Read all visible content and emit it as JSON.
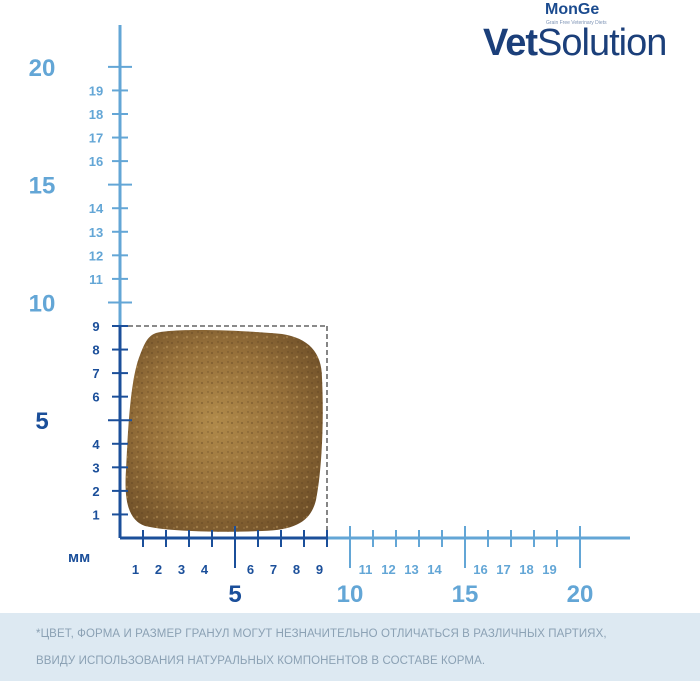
{
  "brand": {
    "top": "MonGe",
    "tagline": "Grain Free Veterinary Diets",
    "name_bold": "Vet",
    "name_regular": "Solution"
  },
  "ruler": {
    "unit_label": "мм",
    "vertical": {
      "major": [
        "5",
        "10",
        "15",
        "20"
      ],
      "minor": [
        "1",
        "2",
        "3",
        "4",
        "6",
        "7",
        "8",
        "9",
        "11",
        "12",
        "13",
        "14",
        "16",
        "17",
        "18",
        "19"
      ]
    },
    "horizontal": {
      "major": [
        "5",
        "10",
        "15",
        "20"
      ],
      "minor": [
        "1",
        "2",
        "3",
        "4",
        "6",
        "7",
        "8",
        "9",
        "11",
        "12",
        "13",
        "14",
        "16",
        "17",
        "18",
        "19"
      ]
    },
    "kibble_size_mm": [
      9,
      9
    ],
    "colors": {
      "dark": "#1b4f9a",
      "light": "#63a6d6"
    }
  },
  "disclaimer": {
    "line1": "*ЦВЕТ, ФОРМА И РАЗМЕР ГРАНУЛ МОГУТ НЕЗНАЧИТЕЛЬНО ОТЛИЧАТЬСЯ В РАЗЛИЧНЫХ ПАРТИЯХ,",
    "line2": "ВВИДУ ИСПОЛЬЗОВАНИЯ НАТУРАЛЬНЫХ КОМПОНЕНТОВ В СОСТАВЕ КОРМА."
  }
}
